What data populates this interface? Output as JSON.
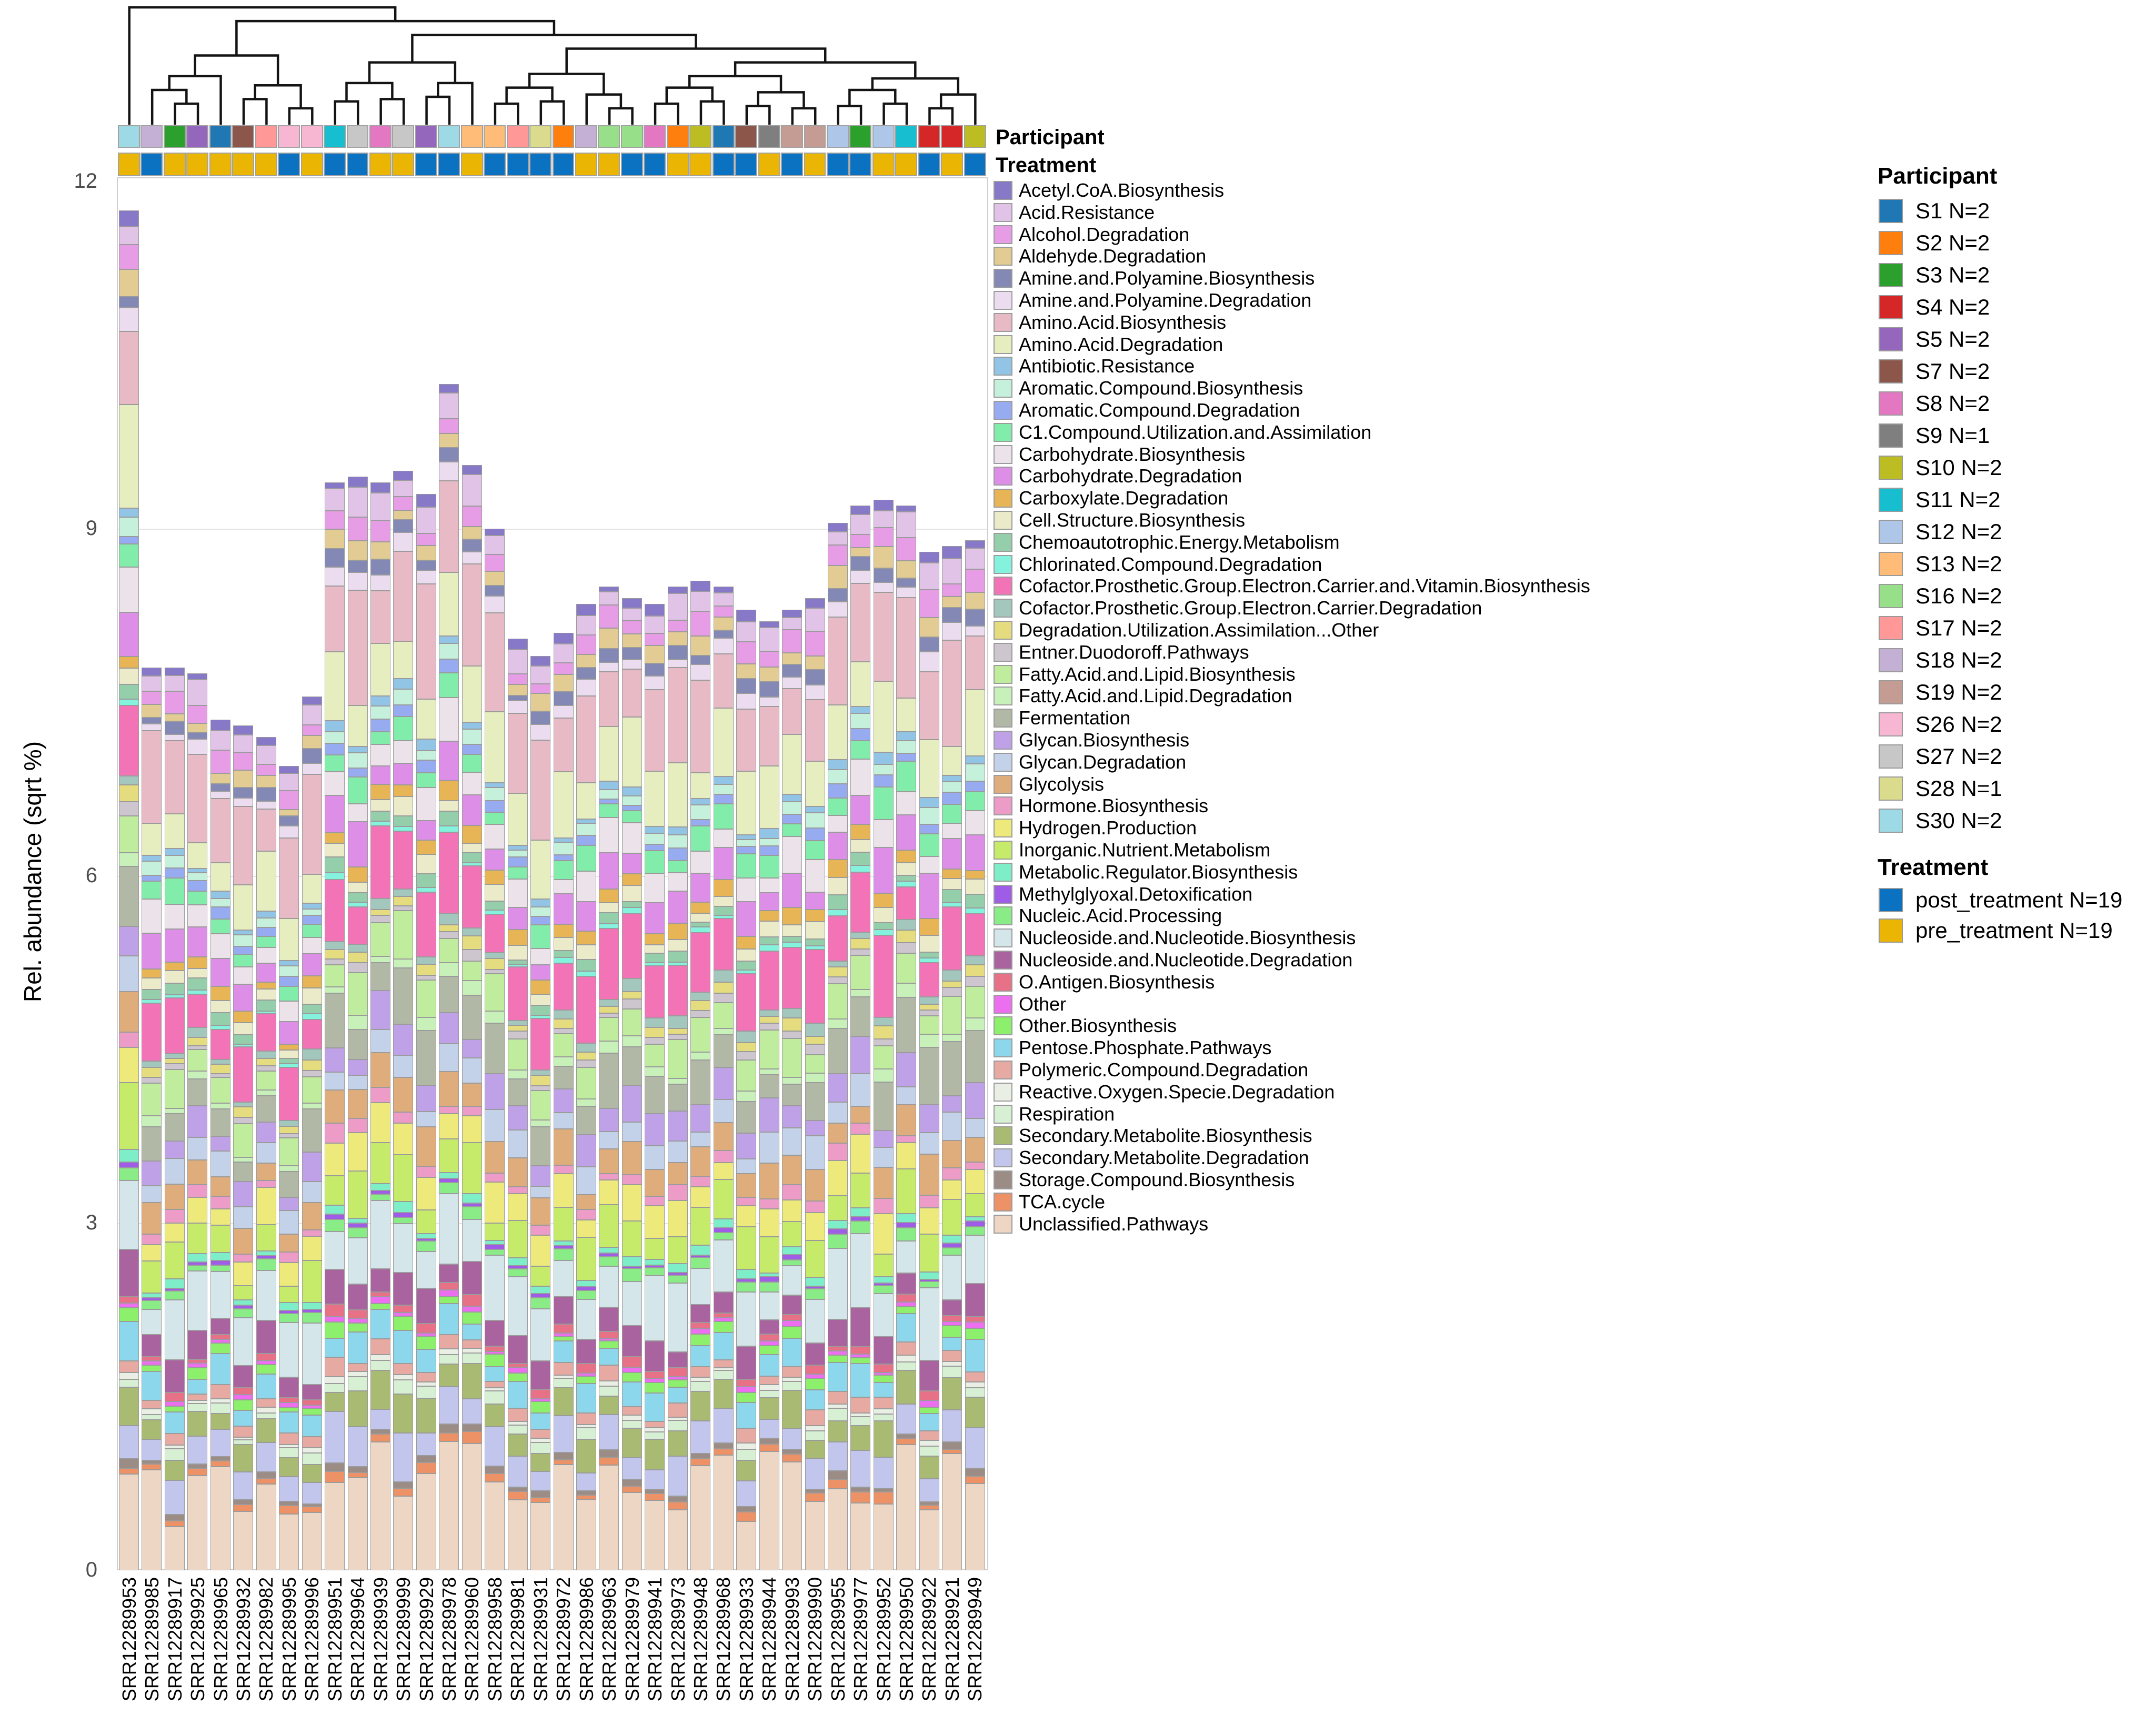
{
  "y_axis": {
    "label": "Rel. abundance (sqrt %)",
    "ticks": [
      0,
      3,
      6,
      9,
      12
    ],
    "max": 12
  },
  "annotation_rows": {
    "participant_label": "Participant",
    "treatment_label": "Treatment"
  },
  "participant_legend": {
    "title": "Participant",
    "items": [
      {
        "id": "S1",
        "label": "S1 N=2",
        "color": "#1f77b4"
      },
      {
        "id": "S2",
        "label": "S2 N=2",
        "color": "#ff7f0e"
      },
      {
        "id": "S3",
        "label": "S3 N=2",
        "color": "#2ca02c"
      },
      {
        "id": "S4",
        "label": "S4 N=2",
        "color": "#d62728"
      },
      {
        "id": "S5",
        "label": "S5 N=2",
        "color": "#9467bd"
      },
      {
        "id": "S7",
        "label": "S7 N=2",
        "color": "#8c564b"
      },
      {
        "id": "S8",
        "label": "S8 N=2",
        "color": "#e377c2"
      },
      {
        "id": "S9",
        "label": "S9 N=1",
        "color": "#7f7f7f"
      },
      {
        "id": "S10",
        "label": "S10 N=2",
        "color": "#bcbd22"
      },
      {
        "id": "S11",
        "label": "S11 N=2",
        "color": "#17becf"
      },
      {
        "id": "S12",
        "label": "S12 N=2",
        "color": "#aec7e8"
      },
      {
        "id": "S13",
        "label": "S13 N=2",
        "color": "#ffbb78"
      },
      {
        "id": "S16",
        "label": "S16 N=2",
        "color": "#98df8a"
      },
      {
        "id": "S17",
        "label": "S17 N=2",
        "color": "#ff9896"
      },
      {
        "id": "S18",
        "label": "S18 N=2",
        "color": "#c5b0d5"
      },
      {
        "id": "S19",
        "label": "S19 N=2",
        "color": "#c49c94"
      },
      {
        "id": "S26",
        "label": "S26 N=2",
        "color": "#f7b6d2"
      },
      {
        "id": "S27",
        "label": "S27 N=2",
        "color": "#c7c7c7"
      },
      {
        "id": "S28",
        "label": "S28 N=1",
        "color": "#dbdb8d"
      },
      {
        "id": "S30",
        "label": "S30 N=2",
        "color": "#9edae5"
      }
    ]
  },
  "treatment_legend": {
    "title": "Treatment",
    "items": [
      {
        "id": "post_treatment",
        "label": "post_treatment N=19",
        "color": "#0b72c2"
      },
      {
        "id": "pre_treatment",
        "label": "pre_treatment N=19",
        "color": "#ebb504"
      }
    ]
  },
  "chart_data": {
    "type": "bar",
    "stacked": true,
    "stack_order": "last_category_at_bottom",
    "ylabel": "Rel. abundance (sqrt %)",
    "ylim": [
      0,
      12
    ],
    "yticks": [
      0,
      3,
      6,
      9,
      12
    ],
    "grid": "horizontal_light",
    "pathways": [
      {
        "label": "Acetyl.CoA.Biosynthesis",
        "color": "#8878c8",
        "profile": 0.1
      },
      {
        "label": "Acid.Resistance",
        "color": "#e2c3e8",
        "profile": 0.22
      },
      {
        "label": "Alcohol.Degradation",
        "color": "#e79ce6",
        "profile": 0.2
      },
      {
        "label": "Aldehyde.Degradation",
        "color": "#e2cc93",
        "profile": 0.16
      },
      {
        "label": "Amine.and.Polyamine.Biosynthesis",
        "color": "#8389b4",
        "profile": 0.12
      },
      {
        "label": "Amine.and.Polyamine.Degradation",
        "color": "#ecdcf0",
        "profile": 0.14
      },
      {
        "label": "Amino.Acid.Biosynthesis",
        "color": "#e7bac6",
        "profile": 0.85
      },
      {
        "label": "Amino.Acid.Degradation",
        "color": "#e6edbe",
        "profile": 0.55
      },
      {
        "label": "Antibiotic.Resistance",
        "color": "#92c4e6",
        "profile": 0.08
      },
      {
        "label": "Aromatic.Compound.Biosynthesis",
        "color": "#c4f0dc",
        "profile": 0.12
      },
      {
        "label": "Aromatic.Compound.Degradation",
        "color": "#97abf0",
        "profile": 0.1
      },
      {
        "label": "C1.Compound.Utilization.and.Assimilation",
        "color": "#82ecab",
        "profile": 0.22
      },
      {
        "label": "Carbohydrate.Biosynthesis",
        "color": "#ece2ea",
        "profile": 0.3
      },
      {
        "label": "Carbohydrate.Degradation",
        "color": "#dd8fe8",
        "profile": 0.33
      },
      {
        "label": "Carboxylate.Degradation",
        "color": "#e7b556",
        "profile": 0.14
      },
      {
        "label": "Cell.Structure.Biosynthesis",
        "color": "#ecebc9",
        "profile": 0.14
      },
      {
        "label": "Chemoautotrophic.Energy.Metabolism",
        "color": "#94ceaa",
        "profile": 0.1
      },
      {
        "label": "Chlorinated.Compound.Degradation",
        "color": "#85f2de",
        "profile": 0.05
      },
      {
        "label": "Cofactor.Prosthetic.Group.Electron.Carrier.and.Vitamin.Biosynthesis",
        "color": "#f373b7",
        "profile": 0.55
      },
      {
        "label": "Cofactor.Prosthetic.Group.Electron.Carrier.Degradation",
        "color": "#a3c6bd",
        "profile": 0.1
      },
      {
        "label": "Degradation.Utilization.Assimilation...Other",
        "color": "#e4dc7f",
        "profile": 0.1
      },
      {
        "label": "Entner.Duodoroff.Pathways",
        "color": "#cdc6cf",
        "profile": 0.08
      },
      {
        "label": "Fatty.Acid.and.Lipid.Biosynthesis",
        "color": "#c0ed9d",
        "profile": 0.33
      },
      {
        "label": "Fatty.Acid.and.Lipid.Degradation",
        "color": "#c8f0b9",
        "profile": 0.1
      },
      {
        "label": "Fermentation",
        "color": "#b2b8a6",
        "profile": 0.42
      },
      {
        "label": "Glycan.Biosynthesis",
        "color": "#bfa1e8",
        "profile": 0.28
      },
      {
        "label": "Glycan.Degradation",
        "color": "#c3d2e8",
        "profile": 0.25
      },
      {
        "label": "Glycolysis",
        "color": "#dfac7c",
        "profile": 0.3
      },
      {
        "label": "Hormone.Biosynthesis",
        "color": "#ec9cc6",
        "profile": 0.12
      },
      {
        "label": "Hydrogen.Production",
        "color": "#ede97a",
        "profile": 0.32
      },
      {
        "label": "Inorganic.Nutrient.Metabolism",
        "color": "#c6ea6a",
        "profile": 0.35
      },
      {
        "label": "Metabolic.Regulator.Biosynthesis",
        "color": "#7eeec9",
        "profile": 0.08
      },
      {
        "label": "Methylglyoxal.Detoxification",
        "color": "#9f5ce6",
        "profile": 0.04
      },
      {
        "label": "Nucleic.Acid.Processing",
        "color": "#8aec86",
        "profile": 0.1
      },
      {
        "label": "Nucleoside.and.Nucleotide.Biosynthesis",
        "color": "#d4e6ea",
        "profile": 0.55
      },
      {
        "label": "Nucleoside.and.Nucleotide.Degradation",
        "color": "#a9639e",
        "profile": 0.28
      },
      {
        "label": "O.Antigen.Biosynthesis",
        "color": "#e77187",
        "profile": 0.08
      },
      {
        "label": "Other",
        "color": "#ec6ff0",
        "profile": 0.05
      },
      {
        "label": "Other.Biosynthesis",
        "color": "#8cf06c",
        "profile": 0.1
      },
      {
        "label": "Pentose.Phosphate.Pathways",
        "color": "#8cd7ec",
        "profile": 0.25
      },
      {
        "label": "Polymeric.Compound.Degradation",
        "color": "#e6aaa2",
        "profile": 0.12
      },
      {
        "label": "Reactive.Oxygen.Specie.Degradation",
        "color": "#e9efe4",
        "profile": 0.05
      },
      {
        "label": "Respiration",
        "color": "#d7f0d4",
        "profile": 0.1
      },
      {
        "label": "Secondary.Metabolite.Biosynthesis",
        "color": "#a9bb72",
        "profile": 0.28
      },
      {
        "label": "Secondary.Metabolite.Degradation",
        "color": "#c3c6ec",
        "profile": 0.33
      },
      {
        "label": "Storage.Compound.Biosynthesis",
        "color": "#9b8d86",
        "profile": 0.06
      },
      {
        "label": "TCA.cycle",
        "color": "#ec9266",
        "profile": 0.08
      },
      {
        "label": "Unclassified.Pathways",
        "color": "#eed6c4",
        "profile": 0.95
      }
    ],
    "samples": [
      {
        "id": "SRR12289953",
        "participant": "S30",
        "treatment": "pre_treatment",
        "total": 11.75
      },
      {
        "id": "SRR12289985",
        "participant": "S18",
        "treatment": "post_treatment",
        "total": 7.8
      },
      {
        "id": "SRR12289917",
        "participant": "S3",
        "treatment": "pre_treatment",
        "total": 7.8
      },
      {
        "id": "SRR12289925",
        "participant": "S5",
        "treatment": "pre_treatment",
        "total": 7.75
      },
      {
        "id": "SRR12289965",
        "participant": "S1",
        "treatment": "pre_treatment",
        "total": 7.35
      },
      {
        "id": "SRR12289932",
        "participant": "S7",
        "treatment": "pre_treatment",
        "total": 7.3
      },
      {
        "id": "SRR12289982",
        "participant": "S17",
        "treatment": "pre_treatment",
        "total": 7.2
      },
      {
        "id": "SRR12289995",
        "participant": "S26",
        "treatment": "post_treatment",
        "total": 6.95
      },
      {
        "id": "SRR12289996",
        "participant": "S26",
        "treatment": "pre_treatment",
        "total": 7.55
      },
      {
        "id": "SRR12289951",
        "participant": "S11",
        "treatment": "post_treatment",
        "total": 9.4
      },
      {
        "id": "SRR12289964",
        "participant": "S27",
        "treatment": "post_treatment",
        "total": 9.45
      },
      {
        "id": "SRR12289939",
        "participant": "S8",
        "treatment": "pre_treatment",
        "total": 9.4
      },
      {
        "id": "SRR12289999",
        "participant": "S27",
        "treatment": "pre_treatment",
        "total": 9.5
      },
      {
        "id": "SRR12289929",
        "participant": "S5",
        "treatment": "post_treatment",
        "total": 9.3
      },
      {
        "id": "SRR12289978",
        "participant": "S30",
        "treatment": "post_treatment",
        "total": 10.25
      },
      {
        "id": "SRR12289960",
        "participant": "S13",
        "treatment": "pre_treatment",
        "total": 9.55
      },
      {
        "id": "SRR12289958",
        "participant": "S13",
        "treatment": "post_treatment",
        "total": 9.0
      },
      {
        "id": "SRR12289981",
        "participant": "S17",
        "treatment": "post_treatment",
        "total": 8.05
      },
      {
        "id": "SRR12289931",
        "participant": "S28",
        "treatment": "post_treatment",
        "total": 7.9
      },
      {
        "id": "SRR12289972",
        "participant": "S2",
        "treatment": "post_treatment",
        "total": 8.1
      },
      {
        "id": "SRR12289986",
        "participant": "S18",
        "treatment": "pre_treatment",
        "total": 8.35
      },
      {
        "id": "SRR12289963",
        "participant": "S16",
        "treatment": "pre_treatment",
        "total": 8.5
      },
      {
        "id": "SRR12289979",
        "participant": "S16",
        "treatment": "post_treatment",
        "total": 8.4
      },
      {
        "id": "SRR12289941",
        "participant": "S8",
        "treatment": "post_treatment",
        "total": 8.35
      },
      {
        "id": "SRR12289973",
        "participant": "S2",
        "treatment": "pre_treatment",
        "total": 8.5
      },
      {
        "id": "SRR12289948",
        "participant": "S10",
        "treatment": "pre_treatment",
        "total": 8.55
      },
      {
        "id": "SRR12289968",
        "participant": "S1",
        "treatment": "post_treatment",
        "total": 8.5
      },
      {
        "id": "SRR12289933",
        "participant": "S7",
        "treatment": "post_treatment",
        "total": 8.3
      },
      {
        "id": "SRR12289944",
        "participant": "S9",
        "treatment": "pre_treatment",
        "total": 8.2
      },
      {
        "id": "SRR12289993",
        "participant": "S19",
        "treatment": "post_treatment",
        "total": 8.3
      },
      {
        "id": "SRR12289990",
        "participant": "S19",
        "treatment": "pre_treatment",
        "total": 8.4
      },
      {
        "id": "SRR12289955",
        "participant": "S12",
        "treatment": "post_treatment",
        "total": 9.05
      },
      {
        "id": "SRR12289977",
        "participant": "S3",
        "treatment": "post_treatment",
        "total": 9.2
      },
      {
        "id": "SRR12289952",
        "participant": "S12",
        "treatment": "pre_treatment",
        "total": 9.25
      },
      {
        "id": "SRR12289950",
        "participant": "S11",
        "treatment": "pre_treatment",
        "total": 9.2
      },
      {
        "id": "SRR12289922",
        "participant": "S4",
        "treatment": "post_treatment",
        "total": 8.8
      },
      {
        "id": "SRR12289921",
        "participant": "S4",
        "treatment": "pre_treatment",
        "total": 8.85
      },
      {
        "id": "SRR12289949",
        "participant": "S10",
        "treatment": "post_treatment",
        "total": 8.9
      }
    ]
  },
  "dendrogram": {
    "tree": [
      1,
      [
        [
          [
            [
              2,
              [
                3,
                4,
                0.16
              ],
              0.28
            ],
            5,
            0.4
          ],
          [
            [
              6,
              7,
              0.2
            ],
            [
              8,
              9,
              0.12
            ],
            0.32
          ],
          0.58
        ],
        [
          [
            [
              [
                10,
                11,
                0.18
              ],
              [
                12,
                13,
                0.2
              ],
              0.34
            ],
            [
              [
                14,
                15,
                0.22
              ],
              16,
              0.34
            ],
            0.52
          ],
          [
            [
              [
                [
                  17,
                  18,
                  0.16
                ],
                [
                  19,
                  20,
                  0.18
                ],
                0.3
              ],
              [
                21,
                [
                  22,
                  23,
                  0.12
                ],
                0.24
              ],
              0.42
            ],
            [
              [
                [
                  [
                    24,
                    25,
                    0.16
                  ],
                  [
                    26,
                    27,
                    0.18
                  ],
                  0.3
                ],
                [
                  [
                    28,
                    29,
                    0.14
                  ],
                  [
                    30,
                    31,
                    0.12
                  ],
                  0.26
                ],
                0.4
              ],
              [
                [
                  [
                    32,
                    33,
                    0.14
                  ],
                  [
                    34,
                    35,
                    0.16
                  ],
                  0.28
                ],
                [
                  [
                    36,
                    37,
                    0.12
                  ],
                  38,
                  0.24
                ],
                0.38
              ],
              0.52
            ],
            0.64
          ],
          0.76
        ],
        0.88
      ],
      1.0
    ]
  }
}
